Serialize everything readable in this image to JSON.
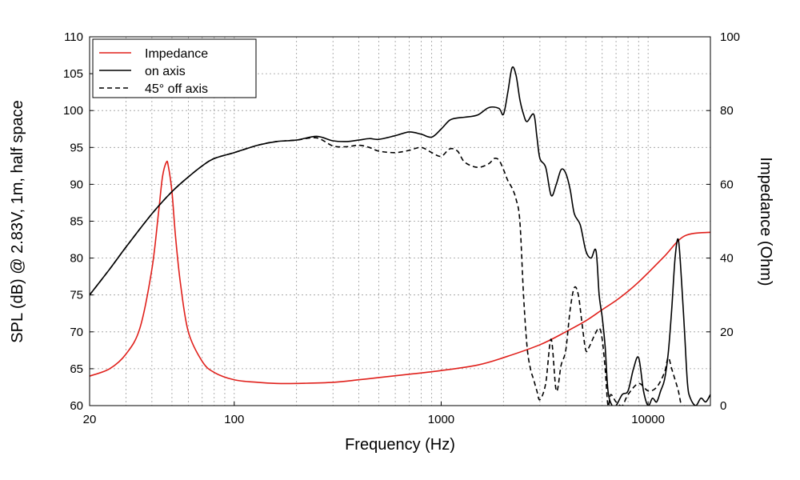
{
  "chart_data": {
    "type": "line",
    "xlabel": "Frequency (Hz)",
    "ylabel_left": "SPL (dB) @ 2.83V, 1m, half space",
    "ylabel_right": "Impedance (Ohm)",
    "x_scale": "log",
    "xlim": [
      20,
      20000
    ],
    "ylim_left": [
      60,
      110
    ],
    "ylim_right": [
      0,
      100
    ],
    "x_tick_labels": [
      "20",
      "100",
      "1000",
      "10000"
    ],
    "y_left_tick_labels": [
      "60",
      "65",
      "70",
      "75",
      "80",
      "85",
      "90",
      "95",
      "100",
      "105",
      "110"
    ],
    "y_right_tick_labels": [
      "0",
      "20",
      "40",
      "60",
      "80",
      "100"
    ],
    "grid": true,
    "legend_position": "top-left",
    "series": [
      {
        "name": "Impedance",
        "axis": "right",
        "color": "#e0201b",
        "dash": "solid",
        "x": [
          20,
          25,
          30,
          35,
          40,
          43,
          45,
          47,
          48,
          50,
          52,
          55,
          60,
          70,
          80,
          100,
          130,
          160,
          200,
          300,
          400,
          500,
          700,
          1000,
          1500,
          2000,
          3000,
          4000,
          5000,
          6000,
          7000,
          8000,
          9000,
          10000,
          12000,
          15000,
          20000
        ],
        "values": [
          8,
          10,
          14,
          21,
          37,
          52,
          62,
          66,
          65,
          58,
          46,
          33,
          20,
          12,
          9,
          7,
          6.3,
          6,
          6,
          6.3,
          7,
          7.6,
          8.5,
          9.5,
          11,
          13,
          16.5,
          20,
          23,
          26,
          28.5,
          31,
          33.5,
          36,
          40.5,
          46,
          47
        ]
      },
      {
        "name": "on axis",
        "axis": "left",
        "color": "#000000",
        "dash": "solid",
        "x": [
          20,
          25,
          30,
          40,
          50,
          60,
          70,
          80,
          100,
          130,
          160,
          200,
          250,
          300,
          350,
          400,
          450,
          500,
          600,
          700,
          800,
          900,
          1000,
          1100,
          1200,
          1300,
          1500,
          1700,
          1900,
          2000,
          2100,
          2200,
          2300,
          2400,
          2500,
          2600,
          2800,
          2900,
          3000,
          3200,
          3400,
          3600,
          3800,
          4000,
          4200,
          4400,
          4700,
          5000,
          5300,
          5600,
          5800,
          6000,
          6200,
          6400,
          6700,
          7000,
          7500,
          8000,
          8500,
          9000,
          9500,
          10000,
          10500,
          11000,
          11500,
          12000,
          12500,
          13000,
          13500,
          14000,
          14500,
          15000,
          15500,
          16000,
          17000,
          18000,
          19000,
          20000
        ],
        "values": [
          75,
          78.5,
          81.5,
          86,
          89,
          91,
          92.5,
          93.5,
          94.3,
          95.3,
          95.8,
          96,
          96.5,
          95.9,
          95.8,
          96,
          96.2,
          96.1,
          96.6,
          97.1,
          96.8,
          96.4,
          97.5,
          98.7,
          99,
          99.1,
          99.4,
          100.4,
          100.3,
          99.5,
          102.5,
          105.8,
          104.8,
          101.5,
          99.5,
          98.5,
          99.5,
          96.5,
          93.5,
          92.3,
          88.5,
          90,
          92,
          91.5,
          89.3,
          86,
          84.5,
          81,
          80,
          81,
          75,
          72,
          68,
          62,
          60,
          60,
          61.5,
          62,
          65,
          66.5,
          62,
          60,
          61,
          60.5,
          62,
          63.5,
          67,
          73,
          80,
          82.5,
          77,
          70,
          63,
          61,
          60,
          61,
          60.5,
          61.5
        ]
      },
      {
        "name": "45° off axis",
        "axis": "left",
        "color": "#000000",
        "dash": "dashed",
        "x": [
          20,
          25,
          30,
          40,
          50,
          60,
          70,
          80,
          100,
          130,
          160,
          200,
          250,
          300,
          350,
          400,
          450,
          500,
          600,
          700,
          800,
          900,
          1000,
          1100,
          1200,
          1300,
          1500,
          1700,
          1800,
          1900,
          2000,
          2100,
          2200,
          2300,
          2400,
          2500,
          2600,
          2700,
          2800,
          2900,
          3000,
          3200,
          3400,
          3600,
          3800,
          4000,
          4200,
          4400,
          4600,
          4800,
          5000,
          5200,
          5500,
          5800,
          6000,
          6200,
          6400,
          6600,
          7000,
          7500,
          8000,
          9000,
          10000,
          11000,
          12000,
          12500,
          13000,
          13500,
          14000,
          14500,
          15000
        ],
        "values": [
          75,
          78.5,
          81.5,
          86,
          89,
          91,
          92.5,
          93.5,
          94.3,
          95.3,
          95.8,
          96,
          96.3,
          95.2,
          95.1,
          95.3,
          95,
          94.5,
          94.3,
          94.6,
          95,
          94.3,
          93.8,
          94.8,
          94.5,
          93,
          92.3,
          92.8,
          93.5,
          93.3,
          92,
          90.5,
          89.5,
          88,
          85,
          75,
          68,
          65,
          63.5,
          62,
          60.8,
          63,
          69,
          62,
          65.5,
          67.5,
          73,
          76,
          75,
          71,
          67.5,
          68,
          69.5,
          70.5,
          69,
          65,
          60,
          61.5,
          60.5,
          60,
          61.5,
          63,
          62,
          62.5,
          64.5,
          66.5,
          65,
          63.5,
          62,
          60,
          60
        ]
      }
    ]
  }
}
